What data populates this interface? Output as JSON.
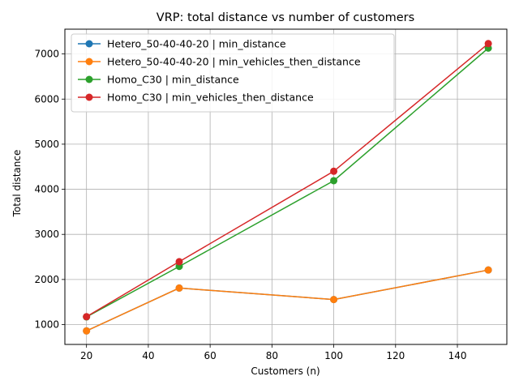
{
  "chart_data": {
    "type": "line",
    "title": "VRP: total distance vs number of customers",
    "xlabel": "Customers (n)",
    "ylabel": "Total distance",
    "xlim": [
      13,
      156
    ],
    "ylim": [
      560,
      7550
    ],
    "xticks": [
      20,
      40,
      60,
      80,
      100,
      120,
      140
    ],
    "yticks": [
      1000,
      2000,
      3000,
      4000,
      5000,
      6000,
      7000
    ],
    "grid": true,
    "legend_position": "top-left",
    "x": [
      20,
      50,
      100,
      150
    ],
    "series": [
      {
        "name": "Hetero_50-40-40-20 | min_distance",
        "color": "#1f77b4",
        "values": [
          860,
          1810,
          1555,
          2210
        ]
      },
      {
        "name": "Hetero_50-40-40-20 | min_vehicles_then_distance",
        "color": "#ff7f0e",
        "values": [
          860,
          1810,
          1555,
          2210
        ]
      },
      {
        "name": "Homo_C30 | min_distance",
        "color": "#2ca02c",
        "values": [
          1170,
          2290,
          4190,
          7130
        ]
      },
      {
        "name": "Homo_C30 | min_vehicles_then_distance",
        "color": "#d62728",
        "values": [
          1175,
          2395,
          4400,
          7230
        ]
      }
    ]
  }
}
